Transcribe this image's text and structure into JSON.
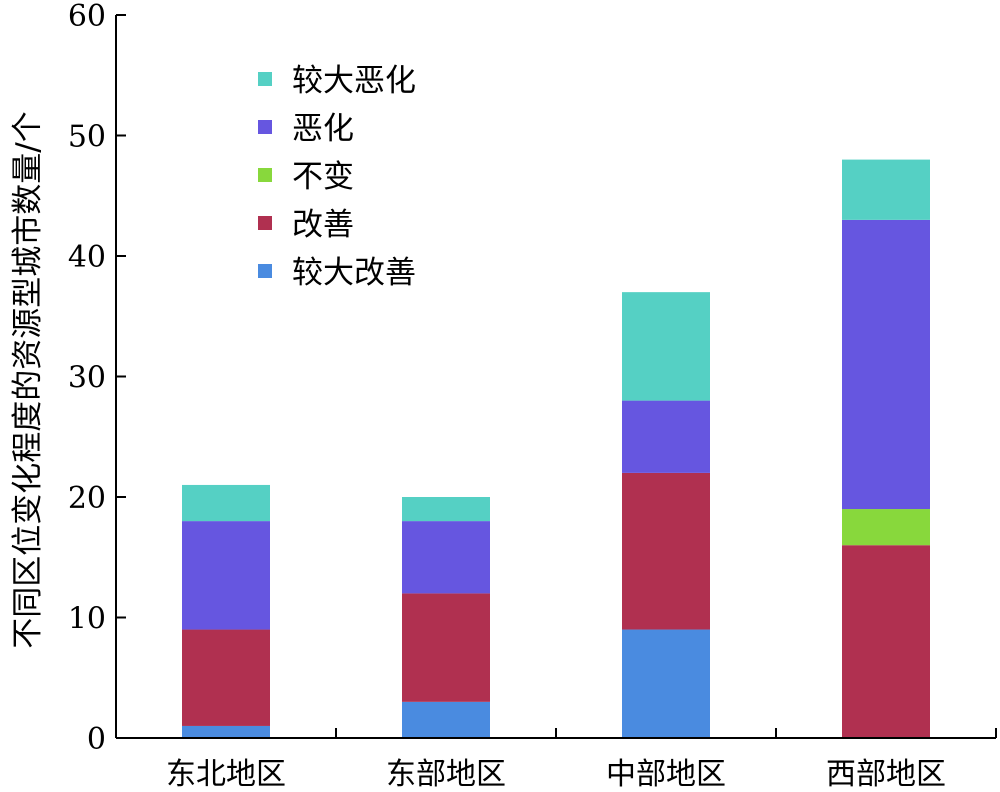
{
  "chart_data": {
    "type": "bar",
    "stacked": true,
    "categories": [
      "东北地区",
      "东部地区",
      "中部地区",
      "西部地区"
    ],
    "series": [
      {
        "name": "较大改善",
        "color": "#4A8BE0",
        "values": [
          1,
          3,
          9,
          0
        ]
      },
      {
        "name": "改善",
        "color": "#B03050",
        "values": [
          8,
          9,
          13,
          16
        ]
      },
      {
        "name": "不变",
        "color": "#88D83C",
        "values": [
          0,
          0,
          0,
          3
        ]
      },
      {
        "name": "恶化",
        "color": "#6656E0",
        "values": [
          9,
          6,
          6,
          24
        ]
      },
      {
        "name": "较大恶化",
        "color": "#55D0C4",
        "values": [
          3,
          2,
          9,
          5
        ]
      }
    ],
    "legend_order": [
      "较大恶化",
      "恶化",
      "不变",
      "改善",
      "较大改善"
    ],
    "legend_position": "top-left",
    "ylabel": "不同区位变化程度的资源型城市数量/个",
    "xlabel": "",
    "ylim": [
      0,
      60
    ],
    "yticks": [
      0,
      10,
      20,
      30,
      40,
      50,
      60
    ],
    "grid": false
  }
}
